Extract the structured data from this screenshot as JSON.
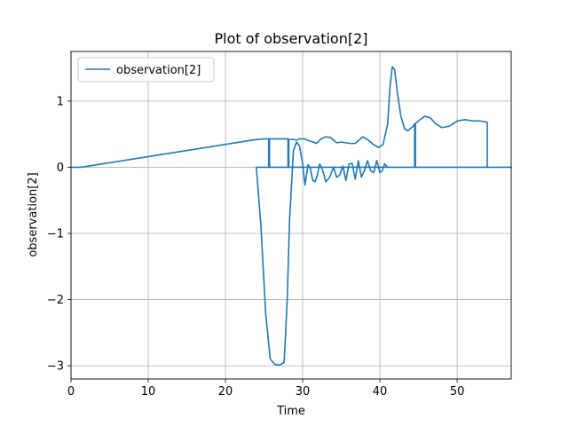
{
  "chart_data": {
    "type": "line",
    "title": "Plot of observation[2]",
    "xlabel": "Time",
    "ylabel": "observation[2]",
    "xlim": [
      0,
      57
    ],
    "ylim": [
      -3.2,
      1.75
    ],
    "xticks": [
      0,
      10,
      20,
      30,
      40,
      50
    ],
    "yticks": [
      -3,
      -2,
      -1,
      0,
      1
    ],
    "ytick_labels": [
      "−3",
      "−2",
      "−1",
      "0",
      "1"
    ],
    "grid": true,
    "legend_position": "top-left",
    "series": [
      {
        "name": "observation[2]",
        "color": "#1f77b4",
        "x": [
          0,
          1.3,
          24.0,
          24.2,
          25.0,
          25.6,
          25.6,
          25.7,
          25.7,
          26.5,
          27.6,
          28.1,
          28.1,
          28.2,
          28.2,
          28.8,
          29.2,
          29.6,
          30.2,
          30.8,
          31.4,
          31.8,
          32.4,
          33.0,
          33.6,
          34.4,
          35.0,
          35.6,
          36.2,
          36.8,
          37.4,
          37.8,
          38.1,
          38.6,
          39.2,
          39.8,
          40.4,
          41.0,
          41.3,
          41.6,
          41.9,
          42.3,
          42.7,
          43.2,
          43.6,
          44.3,
          44.5,
          44.5,
          44.6,
          44.6,
          45.2,
          45.8,
          46.5,
          47.2,
          48.0,
          49.0,
          50.0,
          51.0,
          52.0,
          53.0,
          53.9,
          53.9,
          54.0,
          54.0,
          57.0,
          57.0,
          24.0,
          24.6,
          25.2,
          25.8,
          26.4,
          27.0,
          27.6,
          28.0,
          28.3,
          28.8,
          29.2,
          29.6,
          30.0,
          30.3,
          30.7,
          31.0,
          31.3,
          31.6,
          31.9,
          32.2,
          32.6,
          33.0,
          33.5,
          34.0,
          34.4,
          34.8,
          35.2,
          35.6,
          36.0,
          36.4,
          36.8,
          37.2,
          37.6,
          38.0,
          38.4,
          38.8,
          39.2,
          39.6,
          40.0,
          40.3,
          40.6,
          41.0,
          57.0
        ],
        "y": [
          0,
          0.0,
          0.42,
          0.42,
          0.43,
          0.43,
          0.0,
          0.0,
          0.43,
          0.43,
          0.43,
          0.43,
          0.0,
          0.0,
          0.42,
          0.42,
          0.41,
          0.43,
          0.43,
          0.4,
          0.38,
          0.36,
          0.43,
          0.46,
          0.45,
          0.37,
          0.38,
          0.37,
          0.36,
          0.36,
          0.42,
          0.46,
          0.44,
          0.4,
          0.34,
          0.3,
          0.34,
          0.65,
          1.2,
          1.52,
          1.48,
          1.1,
          0.78,
          0.58,
          0.55,
          0.62,
          0.66,
          0.0,
          0.0,
          0.66,
          0.72,
          0.77,
          0.75,
          0.66,
          0.6,
          0.62,
          0.7,
          0.72,
          0.7,
          0.7,
          0.68,
          0.0,
          0.0,
          0.0,
          0.0,
          0.0,
          0.0,
          -0.9,
          -2.2,
          -2.9,
          -2.98,
          -2.99,
          -2.95,
          -2.0,
          -0.8,
          0.25,
          0.38,
          0.32,
          0.05,
          -0.27,
          0.04,
          -0.02,
          -0.2,
          -0.22,
          -0.12,
          0.05,
          -0.05,
          -0.22,
          -0.15,
          0.0,
          -0.15,
          -0.12,
          0.02,
          -0.2,
          0.05,
          0.06,
          -0.18,
          0.1,
          -0.15,
          -0.05,
          0.1,
          -0.05,
          -0.08,
          0.1,
          -0.08,
          -0.05,
          0.05,
          0.0,
          0.0
        ]
      }
    ]
  }
}
